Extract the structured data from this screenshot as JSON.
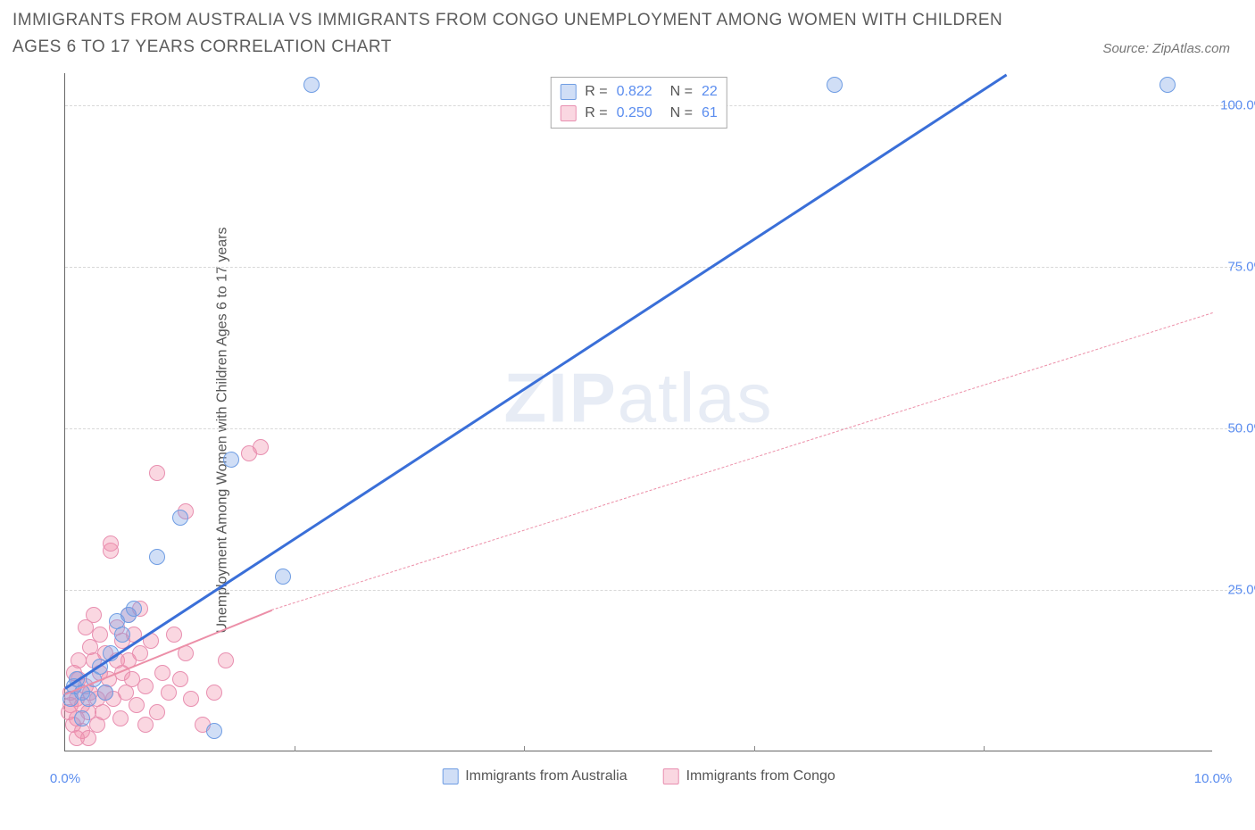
{
  "title": "IMMIGRANTS FROM AUSTRALIA VS IMMIGRANTS FROM CONGO UNEMPLOYMENT AMONG WOMEN WITH CHILDREN AGES 6 TO 17 YEARS CORRELATION CHART",
  "source": "Source: ZipAtlas.com",
  "watermark_a": "ZIP",
  "watermark_b": "atlas",
  "chart": {
    "type": "scatter",
    "xlim": [
      0,
      10
    ],
    "ylim": [
      0,
      105
    ],
    "xticks": [
      0,
      2,
      4,
      6,
      8,
      10
    ],
    "xtick_labels": [
      "0.0%",
      "",
      "",
      "",
      "",
      "10.0%"
    ],
    "yticks": [
      25,
      50,
      75,
      100
    ],
    "ytick_labels": [
      "25.0%",
      "50.0%",
      "75.0%",
      "100.0%"
    ],
    "y_axis_label": "Unemployment Among Women with Children Ages 6 to 17 years",
    "grid_color": "#d8d8d8",
    "background_color": "#ffffff",
    "series": [
      {
        "name": "Immigrants from Australia",
        "key": "australia",
        "color_fill": "rgba(120,160,230,0.35)",
        "color_stroke": "#6f9de3",
        "line_color": "#3a6fd8",
        "line_style": "solid",
        "line_width": 3,
        "R": "0.822",
        "N": "22",
        "trend": {
          "x1": 0.0,
          "y1": 10,
          "x2": 8.2,
          "y2": 105
        },
        "points": [
          {
            "x": 0.05,
            "y": 8
          },
          {
            "x": 0.08,
            "y": 10
          },
          {
            "x": 0.15,
            "y": 9
          },
          {
            "x": 0.2,
            "y": 8
          },
          {
            "x": 0.25,
            "y": 11
          },
          {
            "x": 0.3,
            "y": 13
          },
          {
            "x": 0.35,
            "y": 9
          },
          {
            "x": 0.4,
            "y": 15
          },
          {
            "x": 0.45,
            "y": 20
          },
          {
            "x": 0.5,
            "y": 18
          },
          {
            "x": 0.55,
            "y": 21
          },
          {
            "x": 0.6,
            "y": 22
          },
          {
            "x": 0.8,
            "y": 30
          },
          {
            "x": 1.0,
            "y": 36
          },
          {
            "x": 1.3,
            "y": 3
          },
          {
            "x": 1.45,
            "y": 45
          },
          {
            "x": 1.9,
            "y": 27
          },
          {
            "x": 2.15,
            "y": 103
          },
          {
            "x": 6.7,
            "y": 103
          },
          {
            "x": 9.6,
            "y": 103
          },
          {
            "x": 0.15,
            "y": 5
          },
          {
            "x": 0.1,
            "y": 11
          }
        ]
      },
      {
        "name": "Immigrants from Congo",
        "key": "congo",
        "color_fill": "rgba(240,140,170,0.35)",
        "color_stroke": "#e88fb0",
        "line_color": "#ec8fa8",
        "line_style": "solid_then_dash",
        "line_width": 2,
        "R": "0.250",
        "N": "61",
        "trend_solid": {
          "x1": 0.0,
          "y1": 9,
          "x2": 1.8,
          "y2": 22
        },
        "trend_dash": {
          "x1": 1.8,
          "y1": 22,
          "x2": 10.0,
          "y2": 68
        },
        "points": [
          {
            "x": 0.03,
            "y": 6
          },
          {
            "x": 0.05,
            "y": 7
          },
          {
            "x": 0.05,
            "y": 9
          },
          {
            "x": 0.07,
            "y": 4
          },
          {
            "x": 0.08,
            "y": 12
          },
          {
            "x": 0.1,
            "y": 5
          },
          {
            "x": 0.1,
            "y": 8
          },
          {
            "x": 0.12,
            "y": 11
          },
          {
            "x": 0.12,
            "y": 14
          },
          {
            "x": 0.15,
            "y": 3
          },
          {
            "x": 0.15,
            "y": 7
          },
          {
            "x": 0.18,
            "y": 10
          },
          {
            "x": 0.18,
            "y": 19
          },
          {
            "x": 0.2,
            "y": 2
          },
          {
            "x": 0.2,
            "y": 6
          },
          {
            "x": 0.22,
            "y": 9
          },
          {
            "x": 0.22,
            "y": 16
          },
          {
            "x": 0.25,
            "y": 14
          },
          {
            "x": 0.25,
            "y": 21
          },
          {
            "x": 0.28,
            "y": 4
          },
          {
            "x": 0.28,
            "y": 8
          },
          {
            "x": 0.3,
            "y": 12
          },
          {
            "x": 0.3,
            "y": 18
          },
          {
            "x": 0.33,
            "y": 6
          },
          {
            "x": 0.35,
            "y": 9
          },
          {
            "x": 0.35,
            "y": 15
          },
          {
            "x": 0.38,
            "y": 11
          },
          {
            "x": 0.4,
            "y": 31
          },
          {
            "x": 0.4,
            "y": 32
          },
          {
            "x": 0.42,
            "y": 8
          },
          {
            "x": 0.45,
            "y": 14
          },
          {
            "x": 0.45,
            "y": 19
          },
          {
            "x": 0.48,
            "y": 5
          },
          {
            "x": 0.5,
            "y": 12
          },
          {
            "x": 0.5,
            "y": 17
          },
          {
            "x": 0.53,
            "y": 9
          },
          {
            "x": 0.55,
            "y": 14
          },
          {
            "x": 0.55,
            "y": 21
          },
          {
            "x": 0.58,
            "y": 11
          },
          {
            "x": 0.6,
            "y": 18
          },
          {
            "x": 0.62,
            "y": 7
          },
          {
            "x": 0.65,
            "y": 15
          },
          {
            "x": 0.65,
            "y": 22
          },
          {
            "x": 0.7,
            "y": 4
          },
          {
            "x": 0.7,
            "y": 10
          },
          {
            "x": 0.75,
            "y": 17
          },
          {
            "x": 0.8,
            "y": 43
          },
          {
            "x": 0.8,
            "y": 6
          },
          {
            "x": 0.85,
            "y": 12
          },
          {
            "x": 0.9,
            "y": 9
          },
          {
            "x": 0.95,
            "y": 18
          },
          {
            "x": 1.0,
            "y": 11
          },
          {
            "x": 1.05,
            "y": 15
          },
          {
            "x": 1.1,
            "y": 8
          },
          {
            "x": 1.05,
            "y": 37
          },
          {
            "x": 1.2,
            "y": 4
          },
          {
            "x": 1.3,
            "y": 9
          },
          {
            "x": 1.4,
            "y": 14
          },
          {
            "x": 1.6,
            "y": 46
          },
          {
            "x": 1.7,
            "y": 47
          },
          {
            "x": 0.1,
            "y": 2
          }
        ]
      }
    ],
    "legend_top": {
      "R_label": "R =",
      "N_label": "N ="
    },
    "legend_bottom": [
      {
        "key": "australia",
        "label": "Immigrants from Australia"
      },
      {
        "key": "congo",
        "label": "Immigrants from Congo"
      }
    ]
  }
}
